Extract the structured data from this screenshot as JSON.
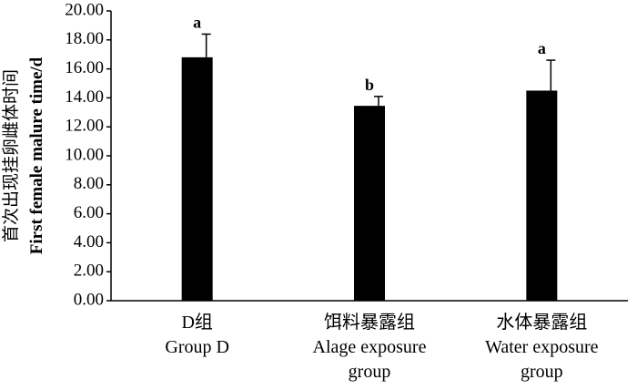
{
  "chart_data": {
    "type": "bar",
    "y_label": [
      "首次出现挂卵雌体时间",
      "First female malure time/d"
    ],
    "categories": [
      [
        "D组",
        "Group D"
      ],
      [
        "饵料暴露组",
        "Alage exposure",
        "group"
      ],
      [
        "水体暴露组",
        "Water exposure",
        "group"
      ]
    ],
    "values": [
      16.8,
      13.45,
      14.5
    ],
    "errors": [
      1.6,
      0.65,
      2.1
    ],
    "significance": [
      "a",
      "b",
      "a"
    ],
    "color": "#000000",
    "ylim": [
      0,
      20
    ],
    "yticks": [
      {
        "value": 0,
        "label": "0.00"
      },
      {
        "value": 2,
        "label": "2.00"
      },
      {
        "value": 4,
        "label": "4.00"
      },
      {
        "value": 6,
        "label": "6.00"
      },
      {
        "value": 8,
        "label": "8.00"
      },
      {
        "value": 10,
        "label": "10.00"
      },
      {
        "value": 12,
        "label": "12.00"
      },
      {
        "value": 14,
        "label": "14.00"
      },
      {
        "value": 16,
        "label": "16.00"
      },
      {
        "value": 18,
        "label": "18.00"
      },
      {
        "value": 20,
        "label": "20.00"
      }
    ]
  }
}
